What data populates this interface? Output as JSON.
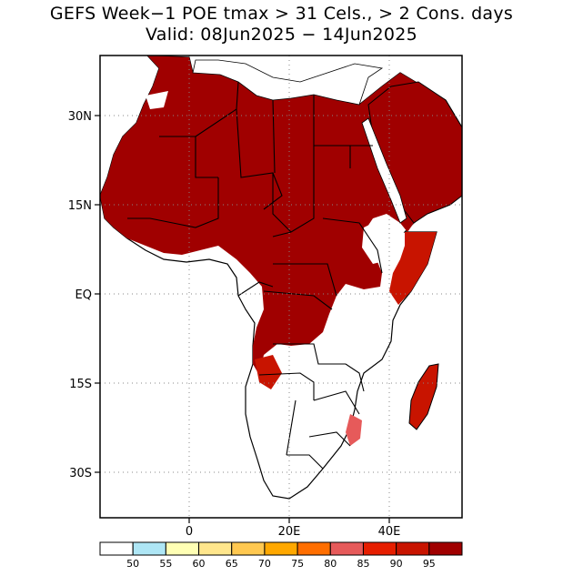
{
  "title_line1": "GEFS Week−1 POE tmax > 31 Cels., > 2 Cons. days",
  "title_line2": "Valid: 08Jun2025 − 14Jun2025",
  "map": {
    "region": "Africa",
    "lat_labels": [
      "30N",
      "15N",
      "EQ",
      "15S",
      "30S"
    ],
    "lon_labels": [
      "0",
      "20E",
      "40E"
    ]
  },
  "colorbar": {
    "colors": [
      "#ffffff",
      "#aee6f5",
      "#ffffb4",
      "#ffe68c",
      "#ffc850",
      "#ffa800",
      "#ff6e00",
      "#e65a5a",
      "#e61e00",
      "#c81400",
      "#a00000"
    ],
    "labels": [
      "50",
      "55",
      "60",
      "65",
      "70",
      "75",
      "80",
      "85",
      "90",
      "95"
    ]
  }
}
